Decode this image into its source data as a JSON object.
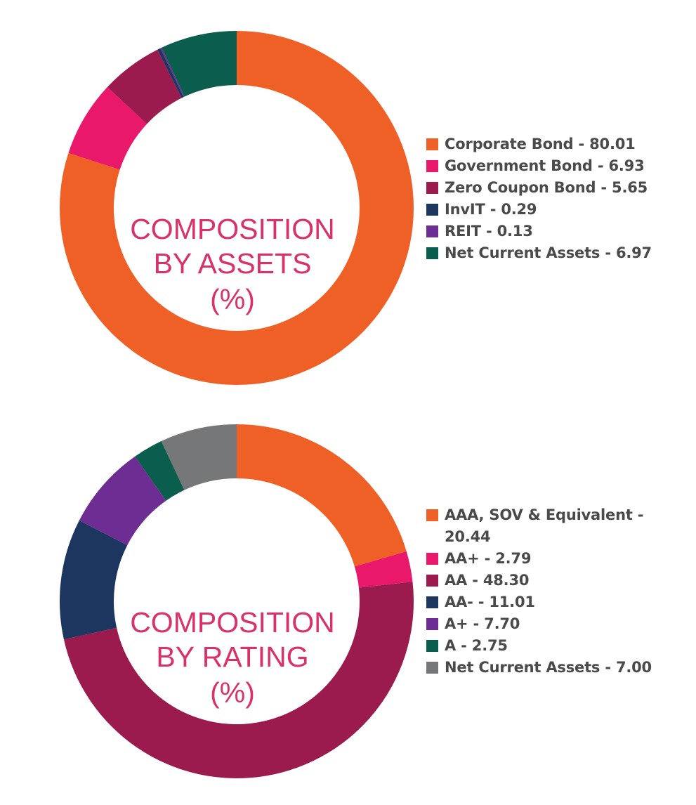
{
  "chart_data": [
    {
      "type": "pie",
      "donut": true,
      "title": "",
      "center_text": [
        "COMPOSITION",
        "BY ASSETS",
        "(%)"
      ],
      "center_color": "#d8316b",
      "legend_position": "right",
      "start_angle": "12 o'clock",
      "direction": "clockwise",
      "series": [
        {
          "label": "Corporate Bond - 80.01",
          "name": "Corporate Bond",
          "value": 80.01,
          "color": "#ef6027"
        },
        {
          "label": "Government Bond - 6.93",
          "name": "Government Bond",
          "value": 6.93,
          "color": "#e9186a"
        },
        {
          "label": "Zero Coupon Bond - 5.65",
          "name": "Zero Coupon Bond",
          "value": 5.65,
          "color": "#9b1b4f"
        },
        {
          "label": "InvIT - 0.29",
          "name": "InvIT",
          "value": 0.29,
          "color": "#1c3660"
        },
        {
          "label": "REIT - 0.13",
          "name": "REIT",
          "value": 0.13,
          "color": "#6d2d92"
        },
        {
          "label": "Net Current Assets - 6.97",
          "name": "Net Current Assets",
          "value": 6.97,
          "color": "#0b5e4e"
        }
      ]
    },
    {
      "type": "pie",
      "donut": true,
      "title": "",
      "center_text": [
        "COMPOSITION",
        "BY RATING",
        "(%)"
      ],
      "center_color": "#d8316b",
      "legend_position": "right",
      "start_angle": "12 o'clock",
      "direction": "clockwise",
      "series": [
        {
          "label": "AAA, SOV & Equivalent - 20.44",
          "name": "AAA, SOV & Equivalent",
          "value": 20.44,
          "color": "#ef6027"
        },
        {
          "label": "AA+ - 2.79",
          "name": "AA+",
          "value": 2.79,
          "color": "#e9186a"
        },
        {
          "label": "AA - 48.30",
          "name": "AA",
          "value": 48.3,
          "color": "#9b1b4f"
        },
        {
          "label": "AA- - 11.01",
          "name": "AA-",
          "value": 11.01,
          "color": "#1c3660"
        },
        {
          "label": "A+ - 7.70",
          "name": "A+",
          "value": 7.7,
          "color": "#6d2d92"
        },
        {
          "label": "A - 2.75",
          "name": "A",
          "value": 2.75,
          "color": "#0b5e4e"
        },
        {
          "label": "Net Current Assets - 7.00",
          "name": "Net Current Assets",
          "value": 7.0,
          "color": "#767778"
        }
      ]
    }
  ]
}
